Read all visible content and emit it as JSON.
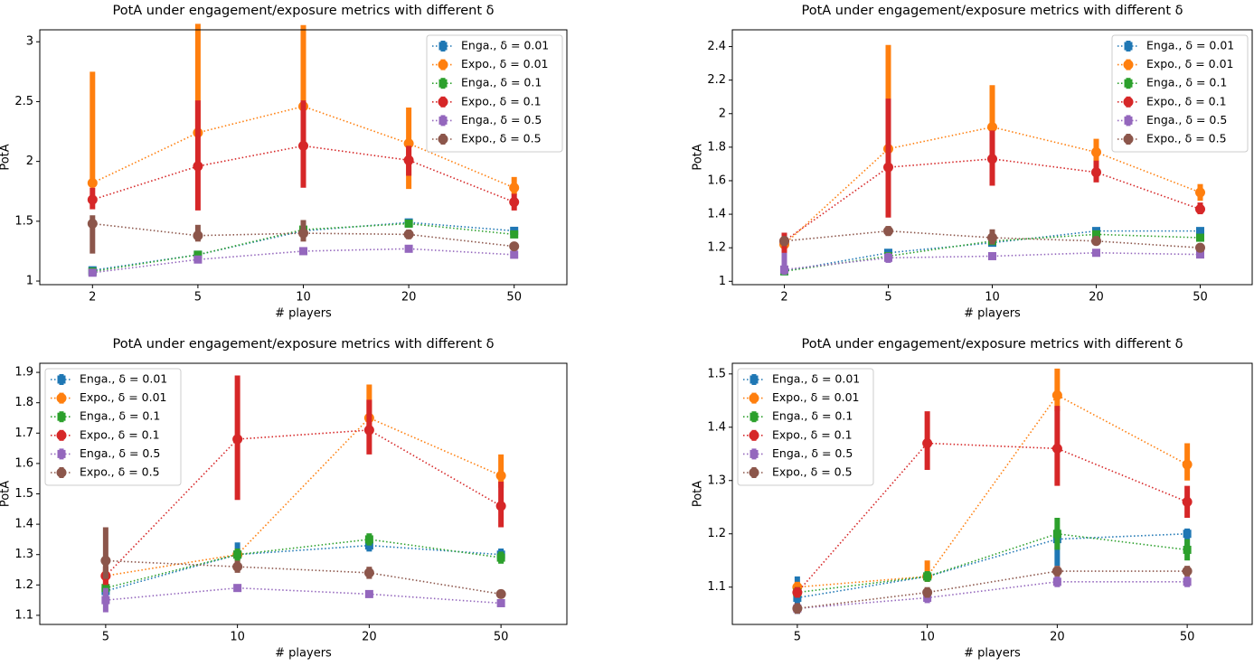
{
  "chart_data": [
    {
      "type": "line",
      "title": "PotA under engagement/exposure metrics with different δ",
      "x_label": "# players",
      "y_label": "PotA",
      "categories": [
        "2",
        "5",
        "10",
        "20",
        "50"
      ],
      "ylim": [
        0.97,
        3.1
      ],
      "yticks": [
        1.0,
        1.5,
        2.0,
        2.5,
        3.0
      ],
      "legend": "upper right",
      "series": [
        {
          "name": "Enga., δ = 0.01",
          "color": "#1f77b4",
          "marker": "square",
          "values": [
            1.09,
            1.22,
            1.42,
            1.49,
            1.42
          ],
          "low": [
            1.08,
            1.2,
            1.39,
            1.47,
            1.39
          ],
          "high": [
            1.1,
            1.24,
            1.45,
            1.51,
            1.45
          ]
        },
        {
          "name": "Expo., δ = 0.01",
          "color": "#ff7f0e",
          "marker": "circle",
          "values": [
            1.82,
            2.24,
            2.46,
            2.15,
            1.78
          ],
          "low": [
            1.8,
            2.2,
            2.4,
            1.77,
            1.72
          ],
          "high": [
            2.75,
            3.15,
            3.14,
            2.45,
            1.87
          ]
        },
        {
          "name": "Enga., δ = 0.1",
          "color": "#2ca02c",
          "marker": "square",
          "values": [
            1.08,
            1.22,
            1.43,
            1.48,
            1.39
          ],
          "low": [
            1.07,
            1.2,
            1.4,
            1.46,
            1.36
          ],
          "high": [
            1.09,
            1.24,
            1.46,
            1.5,
            1.42
          ]
        },
        {
          "name": "Expo., δ = 0.1",
          "color": "#d62728",
          "marker": "circle",
          "values": [
            1.68,
            1.96,
            2.13,
            2.01,
            1.66
          ],
          "low": [
            1.6,
            1.59,
            1.78,
            1.88,
            1.59
          ],
          "high": [
            1.78,
            2.51,
            2.51,
            2.13,
            1.73
          ]
        },
        {
          "name": "Enga., δ = 0.5",
          "color": "#9467bd",
          "marker": "square",
          "values": [
            1.07,
            1.18,
            1.25,
            1.27,
            1.22
          ],
          "low": [
            1.06,
            1.16,
            1.23,
            1.26,
            1.21
          ],
          "high": [
            1.08,
            1.2,
            1.27,
            1.28,
            1.23
          ]
        },
        {
          "name": "Expo., δ = 0.5",
          "color": "#8c564b",
          "marker": "circle",
          "values": [
            1.48,
            1.38,
            1.4,
            1.39,
            1.29
          ],
          "low": [
            1.23,
            1.33,
            1.33,
            1.35,
            1.27
          ],
          "high": [
            1.55,
            1.47,
            1.51,
            1.43,
            1.31
          ]
        }
      ]
    },
    {
      "type": "line",
      "title": "PotA under engagement/exposure metrics with different δ",
      "x_label": "# players",
      "y_label": "PotA",
      "categories": [
        "2",
        "5",
        "10",
        "20",
        "50"
      ],
      "ylim": [
        0.98,
        2.5
      ],
      "yticks": [
        1.0,
        1.2,
        1.4,
        1.6,
        1.8,
        2.0,
        2.2,
        2.4
      ],
      "legend": "upper right",
      "series": [
        {
          "name": "Enga., δ = 0.01",
          "color": "#1f77b4",
          "marker": "square",
          "values": [
            1.06,
            1.17,
            1.23,
            1.3,
            1.3
          ],
          "low": [
            1.05,
            1.15,
            1.21,
            1.29,
            1.29
          ],
          "high": [
            1.07,
            1.19,
            1.25,
            1.31,
            1.31
          ]
        },
        {
          "name": "Expo., δ = 0.01",
          "color": "#ff7f0e",
          "marker": "circle",
          "values": [
            1.22,
            1.79,
            1.92,
            1.77,
            1.53
          ],
          "low": [
            1.2,
            1.4,
            1.9,
            1.7,
            1.48
          ],
          "high": [
            1.26,
            2.41,
            2.17,
            1.85,
            1.58
          ]
        },
        {
          "name": "Enga., δ = 0.1",
          "color": "#2ca02c",
          "marker": "square",
          "values": [
            1.06,
            1.15,
            1.24,
            1.28,
            1.26
          ],
          "low": [
            1.05,
            1.13,
            1.22,
            1.27,
            1.25
          ],
          "high": [
            1.07,
            1.17,
            1.26,
            1.29,
            1.27
          ]
        },
        {
          "name": "Expo., δ = 0.1",
          "color": "#d62728",
          "marker": "circle",
          "values": [
            1.24,
            1.68,
            1.73,
            1.65,
            1.43
          ],
          "low": [
            1.16,
            1.38,
            1.57,
            1.59,
            1.4
          ],
          "high": [
            1.29,
            2.09,
            1.9,
            1.72,
            1.47
          ]
        },
        {
          "name": "Enga., δ = 0.5",
          "color": "#9467bd",
          "marker": "square",
          "values": [
            1.07,
            1.14,
            1.15,
            1.17,
            1.16
          ],
          "low": [
            1.04,
            1.11,
            1.13,
            1.16,
            1.15
          ],
          "high": [
            1.17,
            1.17,
            1.17,
            1.18,
            1.17
          ]
        },
        {
          "name": "Expo., δ = 0.5",
          "color": "#8c564b",
          "marker": "circle",
          "values": [
            1.24,
            1.3,
            1.26,
            1.24,
            1.2
          ],
          "low": [
            1.21,
            1.27,
            1.22,
            1.22,
            1.18
          ],
          "high": [
            1.27,
            1.33,
            1.31,
            1.27,
            1.22
          ]
        }
      ]
    },
    {
      "type": "line",
      "title": "PotA under engagement/exposure metrics with different δ",
      "x_label": "# players",
      "y_label": "PotA",
      "categories": [
        "5",
        "10",
        "20",
        "50"
      ],
      "ylim": [
        1.07,
        1.93
      ],
      "yticks": [
        1.1,
        1.2,
        1.3,
        1.4,
        1.5,
        1.6,
        1.7,
        1.8,
        1.9
      ],
      "legend": "upper left",
      "series": [
        {
          "name": "Enga., δ = 0.01",
          "color": "#1f77b4",
          "marker": "square",
          "values": [
            1.18,
            1.3,
            1.33,
            1.3
          ],
          "low": [
            1.16,
            1.28,
            1.31,
            1.28
          ],
          "high": [
            1.2,
            1.34,
            1.35,
            1.32
          ]
        },
        {
          "name": "Expo., δ = 0.01",
          "color": "#ff7f0e",
          "marker": "circle",
          "values": [
            1.23,
            1.3,
            1.75,
            1.56
          ],
          "low": [
            1.21,
            1.28,
            1.72,
            1.52
          ],
          "high": [
            1.25,
            1.32,
            1.86,
            1.63
          ]
        },
        {
          "name": "Enga., δ = 0.1",
          "color": "#2ca02c",
          "marker": "square",
          "values": [
            1.19,
            1.3,
            1.35,
            1.29
          ],
          "low": [
            1.17,
            1.28,
            1.33,
            1.27
          ],
          "high": [
            1.21,
            1.32,
            1.37,
            1.31
          ]
        },
        {
          "name": "Expo., δ = 0.1",
          "color": "#d62728",
          "marker": "circle",
          "values": [
            1.23,
            1.68,
            1.71,
            1.46
          ],
          "low": [
            1.2,
            1.48,
            1.63,
            1.39
          ],
          "high": [
            1.26,
            1.89,
            1.81,
            1.54
          ]
        },
        {
          "name": "Enga., δ = 0.5",
          "color": "#9467bd",
          "marker": "square",
          "values": [
            1.15,
            1.19,
            1.17,
            1.14
          ],
          "low": [
            1.11,
            1.18,
            1.16,
            1.13
          ],
          "high": [
            1.19,
            1.2,
            1.18,
            1.15
          ]
        },
        {
          "name": "Expo., δ = 0.5",
          "color": "#8c564b",
          "marker": "circle",
          "values": [
            1.28,
            1.26,
            1.24,
            1.17
          ],
          "low": [
            1.22,
            1.24,
            1.22,
            1.16
          ],
          "high": [
            1.39,
            1.28,
            1.26,
            1.18
          ]
        }
      ]
    },
    {
      "type": "line",
      "title": "PotA under engagement/exposure metrics with different δ",
      "x_label": "# players",
      "y_label": "PotA",
      "categories": [
        "5",
        "10",
        "20",
        "50"
      ],
      "ylim": [
        1.03,
        1.52
      ],
      "yticks": [
        1.1,
        1.2,
        1.3,
        1.4,
        1.5
      ],
      "legend": "upper left",
      "series": [
        {
          "name": "Enga., δ = 0.01",
          "color": "#1f77b4",
          "marker": "square",
          "values": [
            1.08,
            1.12,
            1.19,
            1.2
          ],
          "low": [
            1.05,
            1.11,
            1.14,
            1.17
          ],
          "high": [
            1.12,
            1.13,
            1.21,
            1.21
          ]
        },
        {
          "name": "Expo., δ = 0.01",
          "color": "#ff7f0e",
          "marker": "circle",
          "values": [
            1.1,
            1.12,
            1.46,
            1.33
          ],
          "low": [
            1.09,
            1.11,
            1.43,
            1.3
          ],
          "high": [
            1.11,
            1.15,
            1.51,
            1.37
          ]
        },
        {
          "name": "Enga., δ = 0.1",
          "color": "#2ca02c",
          "marker": "square",
          "values": [
            1.09,
            1.12,
            1.2,
            1.17
          ],
          "low": [
            1.08,
            1.11,
            1.17,
            1.15
          ],
          "high": [
            1.1,
            1.13,
            1.23,
            1.19
          ]
        },
        {
          "name": "Expo., δ = 0.1",
          "color": "#d62728",
          "marker": "circle",
          "values": [
            1.09,
            1.37,
            1.36,
            1.26
          ],
          "low": [
            1.08,
            1.32,
            1.29,
            1.23
          ],
          "high": [
            1.1,
            1.43,
            1.44,
            1.29
          ]
        },
        {
          "name": "Enga., δ = 0.5",
          "color": "#9467bd",
          "marker": "square",
          "values": [
            1.06,
            1.08,
            1.11,
            1.11
          ],
          "low": [
            1.05,
            1.07,
            1.1,
            1.1
          ],
          "high": [
            1.07,
            1.09,
            1.12,
            1.12
          ]
        },
        {
          "name": "Expo., δ = 0.5",
          "color": "#8c564b",
          "marker": "circle",
          "values": [
            1.06,
            1.09,
            1.13,
            1.13
          ],
          "low": [
            1.05,
            1.08,
            1.12,
            1.12
          ],
          "high": [
            1.07,
            1.1,
            1.14,
            1.14
          ]
        }
      ]
    }
  ]
}
